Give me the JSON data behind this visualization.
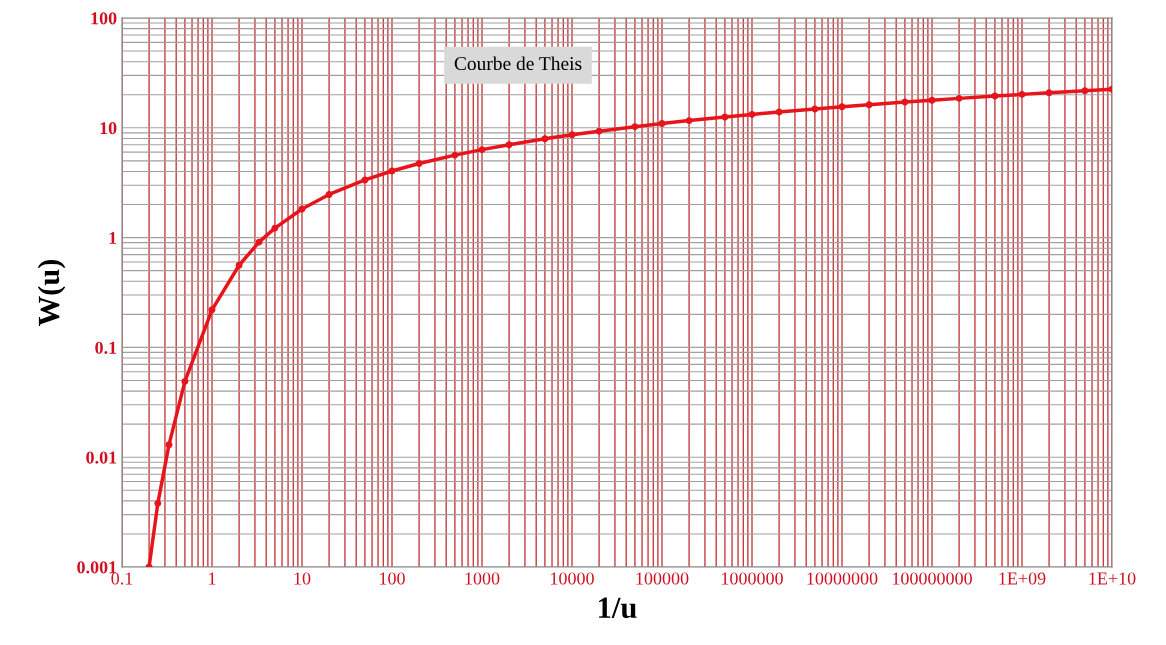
{
  "chart_data": {
    "type": "line",
    "title": "Courbe de Theis",
    "xlabel": "1/u",
    "ylabel": "W(u)",
    "x": [
      0.2,
      0.25,
      0.333,
      0.5,
      1,
      2,
      3.33,
      5,
      10,
      20,
      50,
      100,
      200,
      500,
      1000,
      2000,
      5000,
      10000,
      20000,
      50000,
      100000,
      200000,
      500000,
      1000000,
      2000000,
      5000000,
      10000000,
      20000000,
      50000000,
      100000000,
      200000000,
      500000000,
      1000000000,
      2000000000,
      5000000000,
      10000000000
    ],
    "series": [
      {
        "color": "#e8141c",
        "values": [
          0.001,
          0.0038,
          0.013,
          0.049,
          0.22,
          0.56,
          0.91,
          1.22,
          1.82,
          2.47,
          3.35,
          4.04,
          4.73,
          5.64,
          6.33,
          7.02,
          7.94,
          8.63,
          9.32,
          10.24,
          10.94,
          11.63,
          12.54,
          13.24,
          13.93,
          14.85,
          15.54,
          16.23,
          17.15,
          17.84,
          18.54,
          19.45,
          20.15,
          20.84,
          21.76,
          22.45
        ]
      }
    ],
    "log": "xy",
    "xlim": [
      0.1,
      10000000000
    ],
    "ylim": [
      0.001,
      100
    ],
    "xticks": [
      0.1,
      1,
      10,
      100,
      1000,
      10000,
      100000,
      1000000,
      10000000,
      100000000,
      {
        "value": 1000000000,
        "label": "1E+09"
      },
      {
        "value": 10000000000,
        "label": "1E+10"
      }
    ],
    "yticks": [
      0.001,
      0.01,
      0.1,
      1,
      10,
      100
    ],
    "grid": true,
    "marker": "circle",
    "line_style": "solid"
  }
}
